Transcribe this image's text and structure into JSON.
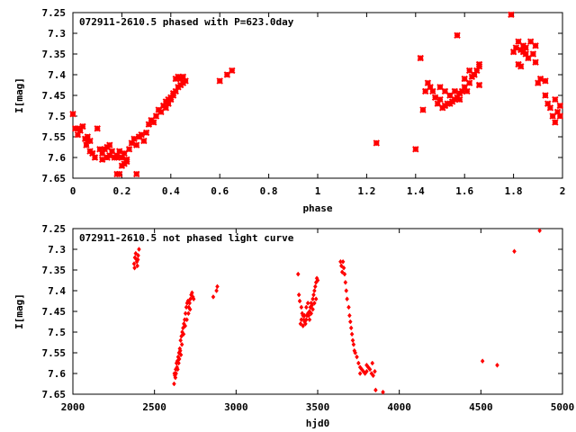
{
  "chart_data": [
    {
      "type": "scatter",
      "title": "072911-2610.5 phased with P=623.0day",
      "xlabel": "phase",
      "ylabel": "I[mag]",
      "xlim": [
        0,
        2
      ],
      "ylim": [
        7.25,
        7.65
      ],
      "y_inverted": true,
      "x_ticks": [
        "0",
        "0.2",
        "0.4",
        "0.6",
        "0.8",
        "1",
        "1.2",
        "1.4",
        "1.6",
        "1.8",
        "2"
      ],
      "y_ticks": [
        "7.25",
        "7.3",
        "7.35",
        "7.4",
        "7.45",
        "7.5",
        "7.55",
        "7.6",
        "7.65"
      ],
      "grid": false,
      "marker": "star",
      "color": "#ff0000",
      "points": [
        [
          0.0,
          7.495
        ],
        [
          0.01,
          7.53
        ],
        [
          0.02,
          7.53
        ],
        [
          0.03,
          7.535
        ],
        [
          0.02,
          7.545
        ],
        [
          0.04,
          7.525
        ],
        [
          0.05,
          7.555
        ],
        [
          0.055,
          7.57
        ],
        [
          0.06,
          7.55
        ],
        [
          0.07,
          7.56
        ],
        [
          0.07,
          7.585
        ],
        [
          0.08,
          7.59
        ],
        [
          0.09,
          7.6
        ],
        [
          0.06,
          7.56
        ],
        [
          0.1,
          7.53
        ],
        [
          0.11,
          7.58
        ],
        [
          0.12,
          7.59
        ],
        [
          0.13,
          7.58
        ],
        [
          0.14,
          7.575
        ],
        [
          0.15,
          7.57
        ],
        [
          0.12,
          7.605
        ],
        [
          0.14,
          7.6
        ],
        [
          0.15,
          7.595
        ],
        [
          0.16,
          7.585
        ],
        [
          0.17,
          7.6
        ],
        [
          0.18,
          7.595
        ],
        [
          0.18,
          7.6
        ],
        [
          0.19,
          7.585
        ],
        [
          0.2,
          7.6
        ],
        [
          0.21,
          7.59
        ],
        [
          0.22,
          7.605
        ],
        [
          0.22,
          7.61
        ],
        [
          0.23,
          7.58
        ],
        [
          0.24,
          7.565
        ],
        [
          0.25,
          7.555
        ],
        [
          0.26,
          7.57
        ],
        [
          0.27,
          7.55
        ],
        [
          0.28,
          7.545
        ],
        [
          0.29,
          7.56
        ],
        [
          0.3,
          7.54
        ],
        [
          0.31,
          7.52
        ],
        [
          0.32,
          7.51
        ],
        [
          0.33,
          7.515
        ],
        [
          0.34,
          7.5
        ],
        [
          0.35,
          7.485
        ],
        [
          0.36,
          7.49
        ],
        [
          0.37,
          7.475
        ],
        [
          0.38,
          7.48
        ],
        [
          0.39,
          7.47
        ],
        [
          0.4,
          7.46
        ],
        [
          0.41,
          7.445
        ],
        [
          0.42,
          7.44
        ],
        [
          0.43,
          7.43
        ],
        [
          0.44,
          7.425
        ],
        [
          0.45,
          7.42
        ],
        [
          0.38,
          7.465
        ],
        [
          0.39,
          7.46
        ],
        [
          0.4,
          7.455
        ],
        [
          0.41,
          7.45
        ],
        [
          0.42,
          7.41
        ],
        [
          0.43,
          7.405
        ],
        [
          0.44,
          7.41
        ],
        [
          0.45,
          7.405
        ],
        [
          0.46,
          7.415
        ],
        [
          0.18,
          7.64
        ],
        [
          0.19,
          7.64
        ],
        [
          0.2,
          7.62
        ],
        [
          0.26,
          7.64
        ],
        [
          0.21,
          7.615
        ],
        [
          0.6,
          7.415
        ],
        [
          0.63,
          7.4
        ],
        [
          0.65,
          7.39
        ],
        [
          1.24,
          7.565
        ],
        [
          1.4,
          7.58
        ],
        [
          1.42,
          7.36
        ],
        [
          1.43,
          7.485
        ],
        [
          1.44,
          7.44
        ],
        [
          1.45,
          7.42
        ],
        [
          1.46,
          7.43
        ],
        [
          1.47,
          7.44
        ],
        [
          1.48,
          7.455
        ],
        [
          1.49,
          7.47
        ],
        [
          1.5,
          7.46
        ],
        [
          1.51,
          7.48
        ],
        [
          1.52,
          7.475
        ],
        [
          1.53,
          7.47
        ],
        [
          1.54,
          7.47
        ],
        [
          1.55,
          7.465
        ],
        [
          1.56,
          7.46
        ],
        [
          1.57,
          7.455
        ],
        [
          1.58,
          7.445
        ],
        [
          1.59,
          7.44
        ],
        [
          1.6,
          7.43
        ],
        [
          1.61,
          7.44
        ],
        [
          1.62,
          7.42
        ],
        [
          1.63,
          7.405
        ],
        [
          1.64,
          7.4
        ],
        [
          1.65,
          7.39
        ],
        [
          1.66,
          7.375
        ],
        [
          1.5,
          7.43
        ],
        [
          1.52,
          7.44
        ],
        [
          1.54,
          7.45
        ],
        [
          1.56,
          7.44
        ],
        [
          1.58,
          7.46
        ],
        [
          1.57,
          7.305
        ],
        [
          1.6,
          7.41
        ],
        [
          1.62,
          7.39
        ],
        [
          1.66,
          7.38
        ],
        [
          1.66,
          7.425
        ],
        [
          1.79,
          7.255
        ],
        [
          1.8,
          7.345
        ],
        [
          1.81,
          7.335
        ],
        [
          1.82,
          7.32
        ],
        [
          1.83,
          7.34
        ],
        [
          1.84,
          7.33
        ],
        [
          1.85,
          7.35
        ],
        [
          1.86,
          7.36
        ],
        [
          1.87,
          7.32
        ],
        [
          1.88,
          7.35
        ],
        [
          1.89,
          7.37
        ],
        [
          1.9,
          7.42
        ],
        [
          1.91,
          7.41
        ],
        [
          1.93,
          7.45
        ],
        [
          1.94,
          7.47
        ],
        [
          1.95,
          7.48
        ],
        [
          1.96,
          7.5
        ],
        [
          1.97,
          7.46
        ],
        [
          1.98,
          7.49
        ],
        [
          1.99,
          7.475
        ],
        [
          1.82,
          7.375
        ],
        [
          1.84,
          7.345
        ],
        [
          1.85,
          7.335
        ],
        [
          1.83,
          7.38
        ],
        [
          1.89,
          7.33
        ],
        [
          1.99,
          7.5
        ],
        [
          1.97,
          7.515
        ],
        [
          1.93,
          7.415
        ]
      ]
    },
    {
      "type": "scatter",
      "title": "072911-2610.5 not phased light curve",
      "xlabel": "hjd0",
      "ylabel": "I[mag]",
      "xlim": [
        2000,
        5000
      ],
      "ylim": [
        7.25,
        7.65
      ],
      "y_inverted": true,
      "x_ticks": [
        "2000",
        "2500",
        "3000",
        "3500",
        "4000",
        "4500",
        "5000"
      ],
      "y_ticks": [
        "7.25",
        "7.3",
        "7.35",
        "7.4",
        "7.45",
        "7.5",
        "7.55",
        "7.6",
        "7.65"
      ],
      "grid": false,
      "marker": "diamond",
      "color": "#ff0000",
      "points": [
        [
          2375,
          7.335
        ],
        [
          2380,
          7.32
        ],
        [
          2385,
          7.31
        ],
        [
          2390,
          7.325
        ],
        [
          2395,
          7.34
        ],
        [
          2400,
          7.315
        ],
        [
          2405,
          7.3
        ],
        [
          2378,
          7.345
        ],
        [
          2392,
          7.33
        ],
        [
          2398,
          7.325
        ],
        [
          2620,
          7.625
        ],
        [
          2625,
          7.605
        ],
        [
          2630,
          7.59
        ],
        [
          2635,
          7.575
        ],
        [
          2640,
          7.57
        ],
        [
          2645,
          7.56
        ],
        [
          2650,
          7.55
        ],
        [
          2655,
          7.54
        ],
        [
          2660,
          7.52
        ],
        [
          2665,
          7.51
        ],
        [
          2670,
          7.5
        ],
        [
          2675,
          7.49
        ],
        [
          2680,
          7.48
        ],
        [
          2685,
          7.47
        ],
        [
          2690,
          7.455
        ],
        [
          2695,
          7.44
        ],
        [
          2700,
          7.43
        ],
        [
          2705,
          7.425
        ],
        [
          2710,
          7.44
        ],
        [
          2715,
          7.43
        ],
        [
          2720,
          7.42
        ],
        [
          2725,
          7.41
        ],
        [
          2730,
          7.405
        ],
        [
          2735,
          7.415
        ],
        [
          2740,
          7.42
        ],
        [
          2628,
          7.61
        ],
        [
          2638,
          7.585
        ],
        [
          2648,
          7.575
        ],
        [
          2658,
          7.545
        ],
        [
          2668,
          7.53
        ],
        [
          2678,
          7.505
        ],
        [
          2688,
          7.485
        ],
        [
          2698,
          7.47
        ],
        [
          2708,
          7.455
        ],
        [
          2718,
          7.445
        ],
        [
          2622,
          7.6
        ],
        [
          2632,
          7.6
        ],
        [
          2642,
          7.59
        ],
        [
          2652,
          7.565
        ],
        [
          2662,
          7.555
        ],
        [
          2860,
          7.415
        ],
        [
          2880,
          7.4
        ],
        [
          2885,
          7.39
        ],
        [
          3380,
          7.36
        ],
        [
          3385,
          7.41
        ],
        [
          3390,
          7.425
        ],
        [
          3395,
          7.48
        ],
        [
          3400,
          7.44
        ],
        [
          3405,
          7.455
        ],
        [
          3410,
          7.46
        ],
        [
          3415,
          7.47
        ],
        [
          3420,
          7.475
        ],
        [
          3425,
          7.48
        ],
        [
          3430,
          7.47
        ],
        [
          3435,
          7.46
        ],
        [
          3440,
          7.455
        ],
        [
          3445,
          7.46
        ],
        [
          3450,
          7.45
        ],
        [
          3455,
          7.44
        ],
        [
          3460,
          7.43
        ],
        [
          3465,
          7.435
        ],
        [
          3470,
          7.42
        ],
        [
          3475,
          7.41
        ],
        [
          3480,
          7.4
        ],
        [
          3485,
          7.39
        ],
        [
          3490,
          7.38
        ],
        [
          3495,
          7.37
        ],
        [
          3500,
          7.375
        ],
        [
          3400,
          7.47
        ],
        [
          3410,
          7.485
        ],
        [
          3420,
          7.46
        ],
        [
          3430,
          7.44
        ],
        [
          3440,
          7.43
        ],
        [
          3450,
          7.47
        ],
        [
          3460,
          7.455
        ],
        [
          3470,
          7.445
        ],
        [
          3480,
          7.43
        ],
        [
          3490,
          7.42
        ],
        [
          3640,
          7.33
        ],
        [
          3645,
          7.34
        ],
        [
          3650,
          7.355
        ],
        [
          3655,
          7.33
        ],
        [
          3660,
          7.345
        ],
        [
          3665,
          7.36
        ],
        [
          3670,
          7.38
        ],
        [
          3675,
          7.4
        ],
        [
          3680,
          7.42
        ],
        [
          3690,
          7.44
        ],
        [
          3695,
          7.46
        ],
        [
          3700,
          7.475
        ],
        [
          3705,
          7.49
        ],
        [
          3710,
          7.505
        ],
        [
          3715,
          7.52
        ],
        [
          3720,
          7.53
        ],
        [
          3725,
          7.545
        ],
        [
          3730,
          7.55
        ],
        [
          3740,
          7.56
        ],
        [
          3750,
          7.575
        ],
        [
          3760,
          7.585
        ],
        [
          3770,
          7.59
        ],
        [
          3780,
          7.595
        ],
        [
          3790,
          7.6
        ],
        [
          3800,
          7.595
        ],
        [
          3810,
          7.585
        ],
        [
          3820,
          7.59
        ],
        [
          3830,
          7.6
        ],
        [
          3840,
          7.605
        ],
        [
          3850,
          7.595
        ],
        [
          3760,
          7.6
        ],
        [
          3800,
          7.58
        ],
        [
          3835,
          7.575
        ],
        [
          3855,
          7.64
        ],
        [
          3900,
          7.645
        ],
        [
          4510,
          7.57
        ],
        [
          4600,
          7.58
        ],
        [
          4705,
          7.305
        ],
        [
          4860,
          7.255
        ]
      ]
    }
  ]
}
